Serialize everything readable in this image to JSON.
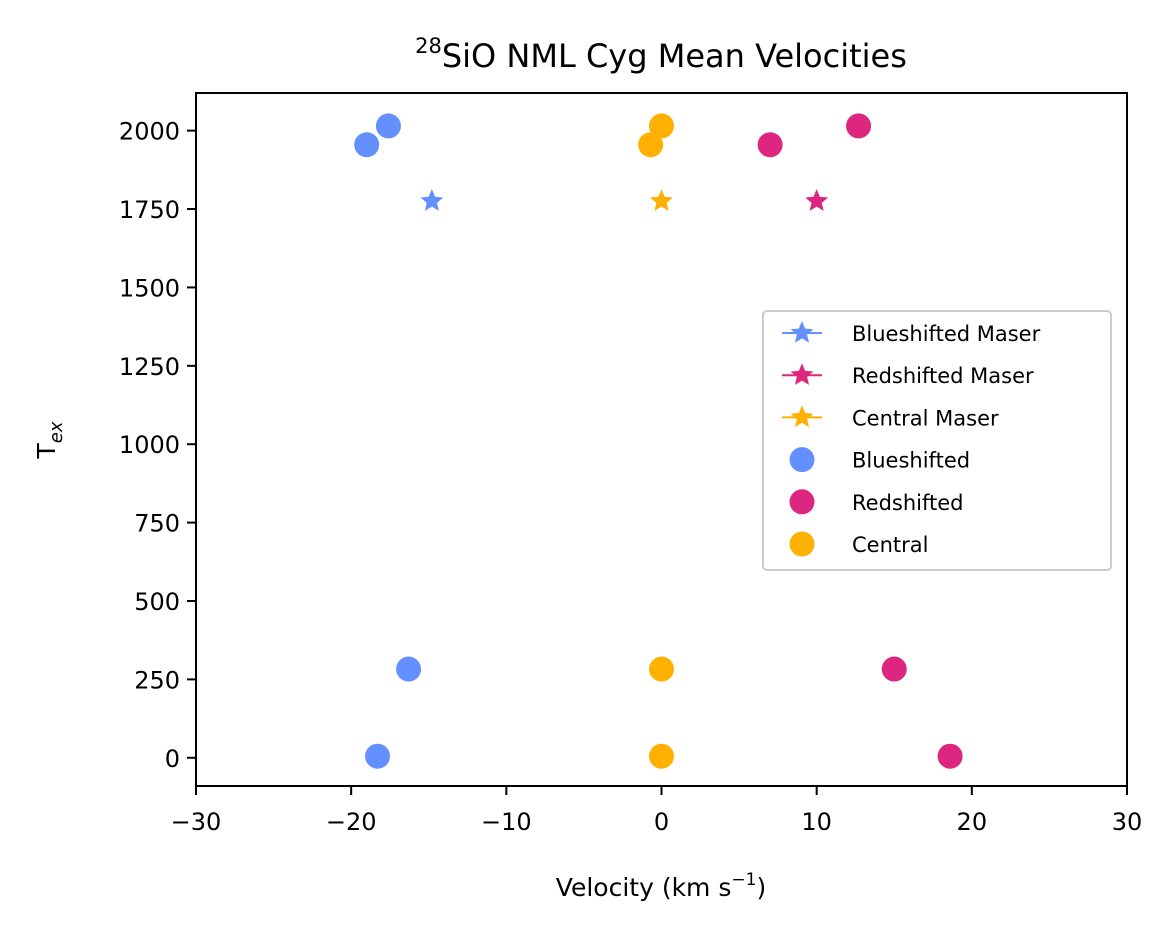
{
  "chart_data": {
    "type": "scatter",
    "title_sup": "28",
    "title_main": "SiO NML Cyg Mean Velocities",
    "xlabel": "Velocity (km s",
    "xlabel_sup": "−1",
    "xlabel_end": ")",
    "ylabel": "T",
    "ylabel_sub": "ex",
    "xlim": [
      -30,
      30
    ],
    "ylim": [
      -90,
      2120
    ],
    "xticks": [
      -30,
      -20,
      -10,
      0,
      10,
      20,
      30
    ],
    "xtick_labels": [
      "−30",
      "−20",
      "−10",
      "0",
      "10",
      "20",
      "30"
    ],
    "yticks": [
      0,
      250,
      500,
      750,
      1000,
      1250,
      1500,
      1750,
      2000
    ],
    "ytick_labels": [
      "0",
      "250",
      "500",
      "750",
      "1000",
      "1250",
      "1500",
      "1750",
      "2000"
    ],
    "legend_position": "center-right",
    "series": [
      {
        "name": "Blueshifted Maser",
        "marker": "star",
        "color": "#648FFF",
        "points": [
          [
            -14.8,
            1775
          ]
        ]
      },
      {
        "name": "Redshifted Maser",
        "marker": "star",
        "color": "#DC267F",
        "points": [
          [
            10.0,
            1775
          ]
        ]
      },
      {
        "name": "Central Maser",
        "marker": "star",
        "color": "#FFB000",
        "points": [
          [
            0.0,
            1775
          ]
        ]
      },
      {
        "name": "Blueshifted",
        "marker": "circle",
        "color": "#648FFF",
        "points": [
          [
            -17.6,
            2015
          ],
          [
            -19.0,
            1955
          ],
          [
            -16.3,
            283
          ],
          [
            -18.3,
            5
          ]
        ]
      },
      {
        "name": "Redshifted",
        "marker": "circle",
        "color": "#DC267F",
        "points": [
          [
            12.7,
            2015
          ],
          [
            7.0,
            1955
          ],
          [
            15.0,
            283
          ],
          [
            18.6,
            5
          ]
        ]
      },
      {
        "name": "Central",
        "marker": "circle",
        "color": "#FFB000",
        "points": [
          [
            0.0,
            2015
          ],
          [
            -0.7,
            1955
          ],
          [
            0.0,
            283
          ],
          [
            0.0,
            5
          ]
        ]
      }
    ]
  }
}
